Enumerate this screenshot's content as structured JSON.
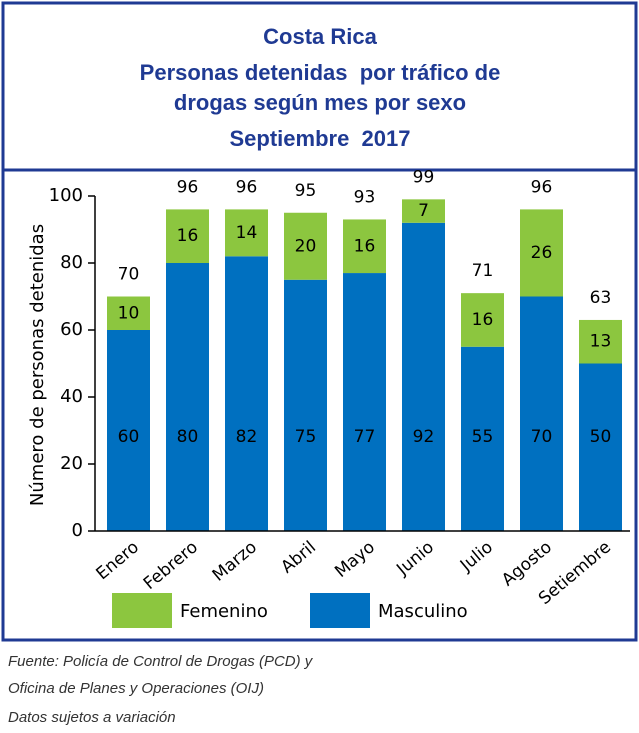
{
  "chart_data": {
    "type": "stacked_bar",
    "title": [
      "Costa Rica",
      "Personas detenidas  por tráfico de",
      "drogas según mes por sexo",
      "Septiembre  2017"
    ],
    "y_label": "Número de personas detenidas",
    "categories": [
      "Enero",
      "Febrero",
      "Marzo",
      "Abril",
      "Mayo",
      "Junio",
      "Julio",
      "Agosto",
      "Setiembre"
    ],
    "series": [
      {
        "name": "Femenino",
        "color": "#8cc63f",
        "values": [
          10,
          16,
          14,
          20,
          16,
          7,
          16,
          26,
          13
        ]
      },
      {
        "name": "Masculino",
        "color": "#0070c0",
        "values": [
          60,
          80,
          82,
          75,
          77,
          92,
          55,
          70,
          50
        ]
      }
    ],
    "totals": [
      70,
      96,
      96,
      95,
      93,
      99,
      71,
      96,
      63
    ],
    "ylim": [
      0,
      100
    ],
    "yticks": [
      0,
      20,
      40,
      60,
      80,
      100
    ],
    "notes": [
      "Fuente: Policía de Control de Drogas (PCD) y",
      "Oficina de Planes y Operaciones (OIJ)",
      "Datos sujetos a variación"
    ]
  }
}
